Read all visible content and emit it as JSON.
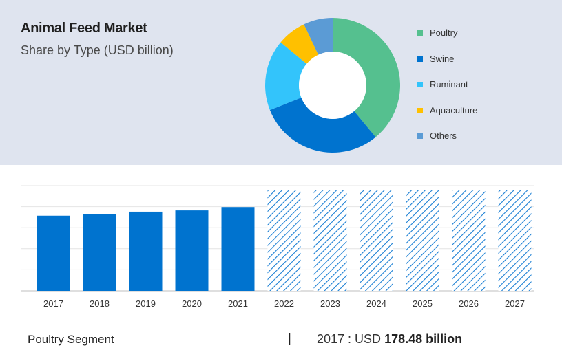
{
  "header": {
    "title": "Animal Feed Market",
    "subtitle": "Share by Type (USD billion)"
  },
  "legend": [
    {
      "label": "Poultry",
      "color": "#55c08f"
    },
    {
      "label": "Swine",
      "color": "#0073cf"
    },
    {
      "label": "Ruminant",
      "color": "#33c4fb"
    },
    {
      "label": "Aquaculture",
      "color": "#ffc000"
    },
    {
      "label": "Others",
      "color": "#5b9bd5"
    }
  ],
  "chart_data": [
    {
      "type": "pie",
      "style": "donut",
      "categories": [
        "Poultry",
        "Swine",
        "Ruminant",
        "Aquaculture",
        "Others"
      ],
      "values": [
        39,
        30,
        17,
        7,
        7
      ],
      "colors": [
        "#55c08f",
        "#0073cf",
        "#33c4fb",
        "#ffc000",
        "#5b9bd5"
      ]
    },
    {
      "type": "bar",
      "categories": [
        "2017",
        "2018",
        "2019",
        "2020",
        "2021",
        "2022",
        "2023",
        "2024",
        "2025",
        "2026",
        "2027"
      ],
      "values": [
        178.48,
        182,
        188,
        191,
        199,
        240,
        240,
        240,
        240,
        240,
        240
      ],
      "forecast_from": "2022",
      "ylim": [
        0,
        250
      ],
      "grid": true,
      "color": "#0073cf"
    }
  ],
  "footer": {
    "segment": "Poultry Segment",
    "separator": "|",
    "year_label": "2017 : USD",
    "value": "178.48 billion"
  }
}
